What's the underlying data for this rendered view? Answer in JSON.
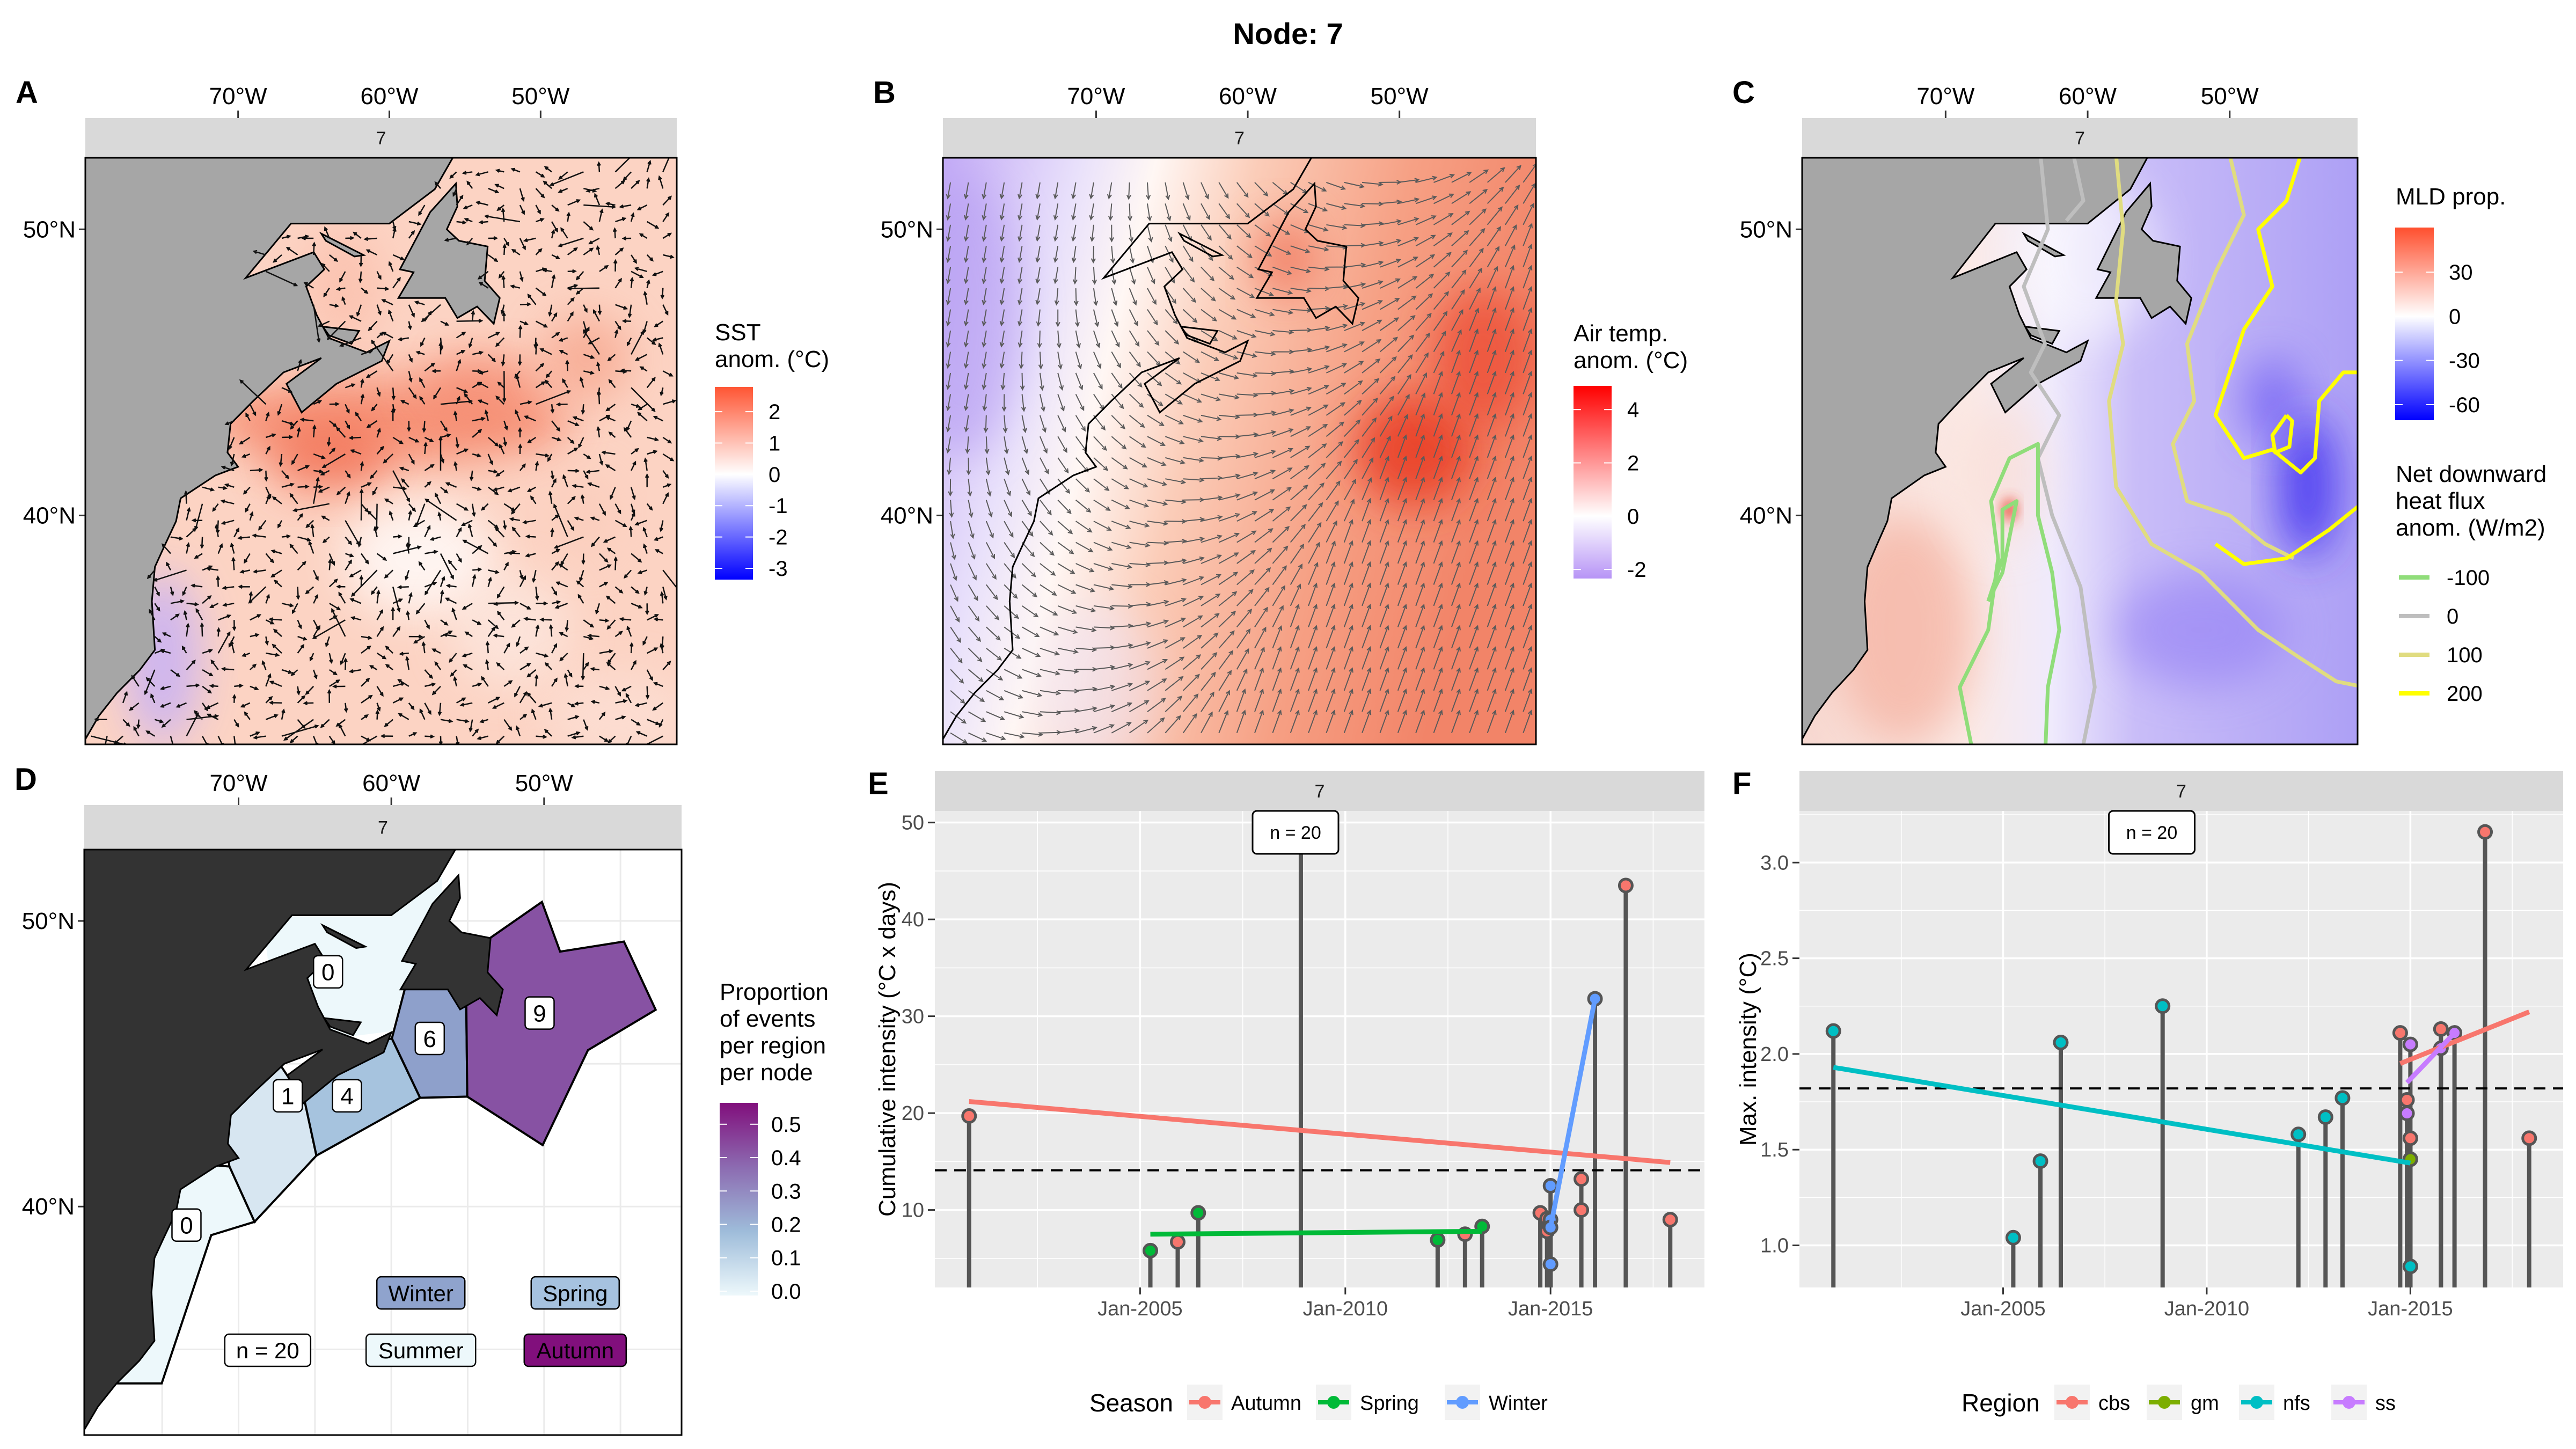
{
  "title": "Node: 7",
  "panels": {
    "A": {
      "letter": "A",
      "strip": "7",
      "lon_ticks": [
        "70°W",
        "60°W",
        "50°W"
      ],
      "lat_ticks": [
        "50°N",
        "40°N"
      ],
      "legend": {
        "title_lines": [
          "SST",
          "anom. (°C)"
        ],
        "ticks": [
          "2",
          "1",
          "0",
          "-1",
          "-2",
          "-3"
        ],
        "limits": [
          -3.36,
          2.79
        ],
        "colors": [
          "#0000FF",
          "#FFFFFF",
          "#FF5533"
        ]
      },
      "vectors": "black anomaly arrows"
    },
    "B": {
      "letter": "B",
      "strip": "7",
      "lon_ticks": [
        "70°W",
        "60°W",
        "50°W"
      ],
      "lat_ticks": [
        "50°N",
        "40°N"
      ],
      "legend": {
        "title_lines": [
          "Air temp.",
          "anom. (°C)"
        ],
        "ticks": [
          "4",
          "2",
          "0",
          "-2"
        ],
        "limits": [
          -2.34,
          4.89
        ],
        "colors": [
          "#B794F6",
          "#FFFFFF",
          "#FF0000"
        ]
      }
    },
    "C": {
      "letter": "C",
      "strip": "7",
      "lon_ticks": [
        "70°W",
        "60°W",
        "50°W"
      ],
      "lat_ticks": [
        "50°N",
        "40°N"
      ],
      "legend": {
        "title_lines": [
          "MLD prop."
        ],
        "ticks": [
          "30",
          "0",
          "-30",
          "-60"
        ],
        "limits": [
          -70.6,
          60.3
        ],
        "colors": [
          "#0000FF",
          "#FFFFFF",
          "#FF4F2E"
        ]
      },
      "contour_legend": {
        "title_lines": [
          "Net downward",
          "heat flux",
          "anom. (W/m2)"
        ],
        "entries": [
          {
            "label": "-100",
            "color": "#90DD7A"
          },
          {
            "label": "0",
            "color": "#BEBEBE"
          },
          {
            "label": "100",
            "color": "#E0DC80"
          },
          {
            "label": "200",
            "color": "#FFFF00"
          }
        ]
      }
    },
    "D": {
      "letter": "D",
      "strip": "7",
      "lon_ticks": [
        "70°W",
        "60°W",
        "50°W"
      ],
      "lat_ticks": [
        "50°N",
        "40°N"
      ],
      "legend": {
        "title_lines": [
          "Proportion",
          "of events",
          "per region",
          "per node"
        ],
        "ticks": [
          "0.5",
          "0.4",
          "0.3",
          "0.2",
          "0.1",
          "0.0"
        ],
        "limits": [
          -0.013,
          0.564
        ],
        "colors": [
          "#EDF8FB",
          "#9EBCDA",
          "#8C6BB1",
          "#810F7C"
        ]
      },
      "regions": [
        {
          "count": "0",
          "color": "#EDF8FB"
        },
        {
          "count": "1",
          "color": "#D7E6F1"
        },
        {
          "count": "4",
          "color": "#A6C3DE"
        },
        {
          "count": "6",
          "color": "#8EA0CB"
        },
        {
          "count": "9",
          "color": "#8752A3"
        },
        {
          "count": "0",
          "color": "#EDF8FB"
        }
      ],
      "n_label": "n = 20",
      "seasons": [
        {
          "label": "Winter",
          "color": "#8FA3CD"
        },
        {
          "label": "Spring",
          "color": "#A6C2DF"
        },
        {
          "label": "Summer",
          "color": "#EDF8FB"
        },
        {
          "label": "Autumn",
          "color": "#810F7C"
        }
      ]
    }
  },
  "chart_data": [
    {
      "panel": "E",
      "letter": "E",
      "type": "lollipop",
      "strip": "7",
      "ylabel": "Cumulative intensity (°C x days)",
      "xlim": [
        "2000-01",
        "2018-10"
      ],
      "ylim": [
        2.0,
        51.2
      ],
      "x_ticks": [
        "Jan-2005",
        "Jan-2010",
        "Jan-2015"
      ],
      "y_ticks": [
        "10",
        "20",
        "30",
        "40",
        "50"
      ],
      "annotation": "n = 20",
      "mean_line": 14.1,
      "grid": true,
      "legend": {
        "title": "Season",
        "placement": "bottom",
        "entries": [
          {
            "name": "Autumn",
            "color": "#F8766D"
          },
          {
            "name": "Spring",
            "color": "#00BA38"
          },
          {
            "name": "Winter",
            "color": "#619CFF"
          }
        ]
      },
      "points": [
        {
          "date": "2000-11",
          "value": 19.7,
          "group": "Autumn"
        },
        {
          "date": "2005-04",
          "value": 5.8,
          "group": "Spring"
        },
        {
          "date": "2005-12",
          "value": 6.7,
          "group": "Autumn"
        },
        {
          "date": "2006-06",
          "value": 9.7,
          "group": "Spring"
        },
        {
          "date": "2008-12",
          "value": null,
          "above_axis": true,
          "group": null
        },
        {
          "date": "2012-04",
          "value": 6.9,
          "group": "Spring"
        },
        {
          "date": "2012-12",
          "value": 7.5,
          "group": "Autumn"
        },
        {
          "date": "2013-05",
          "value": 8.3,
          "group": "Spring"
        },
        {
          "date": "2014-10",
          "value": 9.7,
          "group": "Autumn"
        },
        {
          "date": "2014-12",
          "value": 9.1,
          "group": "Autumn"
        },
        {
          "date": "2014-12",
          "value": 7.8,
          "group": "Autumn"
        },
        {
          "date": "2015-01",
          "value": 12.5,
          "group": "Winter"
        },
        {
          "date": "2015-01",
          "value": 9.0,
          "group": "Winter"
        },
        {
          "date": "2015-01",
          "value": 8.2,
          "group": "Winter"
        },
        {
          "date": "2015-01",
          "value": 4.4,
          "group": "Winter"
        },
        {
          "date": "2015-10",
          "value": 13.2,
          "group": "Autumn"
        },
        {
          "date": "2015-10",
          "value": 10.0,
          "group": "Autumn"
        },
        {
          "date": "2016-02",
          "value": 31.8,
          "group": "Winter"
        },
        {
          "date": "2016-11",
          "value": 43.5,
          "group": "Autumn"
        },
        {
          "date": "2017-12",
          "value": 9.0,
          "group": "Autumn"
        }
      ],
      "trend_lines": [
        {
          "group": "Autumn",
          "start": {
            "date": "2000-11",
            "value": 21.2
          },
          "end": {
            "date": "2017-12",
            "value": 14.9
          }
        },
        {
          "group": "Spring",
          "start": {
            "date": "2005-04",
            "value": 7.5
          },
          "end": {
            "date": "2013-05",
            "value": 7.8
          }
        },
        {
          "group": "Winter",
          "start": {
            "date": "2015-01",
            "value": 8.2
          },
          "end": {
            "date": "2016-02",
            "value": 31.8
          }
        }
      ]
    },
    {
      "panel": "F",
      "letter": "F",
      "type": "lollipop",
      "strip": "7",
      "ylabel": "Max. intensity (°C)",
      "xlim": [
        "2000-01",
        "2018-10"
      ],
      "ylim": [
        0.78,
        3.27
      ],
      "x_ticks": [
        "Jan-2005",
        "Jan-2010",
        "Jan-2015"
      ],
      "y_ticks": [
        "1.0",
        "1.5",
        "2.0",
        "2.5",
        "3.0"
      ],
      "annotation": "n = 20",
      "mean_line": 1.82,
      "grid": true,
      "legend": {
        "title": "Region",
        "placement": "bottom",
        "entries": [
          {
            "name": "cbs",
            "color": "#F8766D"
          },
          {
            "name": "gm",
            "color": "#7CAE00"
          },
          {
            "name": "nfs",
            "color": "#00BFC4"
          },
          {
            "name": "ss",
            "color": "#C77CFF"
          }
        ]
      },
      "points": [
        {
          "date": "2000-11",
          "value": 2.12,
          "group": "nfs"
        },
        {
          "date": "2005-04",
          "value": 1.04,
          "group": "nfs"
        },
        {
          "date": "2005-12",
          "value": 1.44,
          "group": "nfs"
        },
        {
          "date": "2006-06",
          "value": 2.06,
          "group": "nfs"
        },
        {
          "date": "2008-12",
          "value": 2.25,
          "group": "nfs"
        },
        {
          "date": "2012-04",
          "value": 1.58,
          "group": "nfs"
        },
        {
          "date": "2012-12",
          "value": 1.67,
          "group": "nfs"
        },
        {
          "date": "2013-05",
          "value": 1.77,
          "group": "nfs"
        },
        {
          "date": "2014-10",
          "value": 2.11,
          "group": "cbs"
        },
        {
          "date": "2014-12",
          "value": 1.76,
          "group": "cbs"
        },
        {
          "date": "2014-12",
          "value": 1.69,
          "group": "ss"
        },
        {
          "date": "2015-01",
          "value": 2.05,
          "group": "ss"
        },
        {
          "date": "2015-01",
          "value": 1.56,
          "group": "cbs"
        },
        {
          "date": "2015-01",
          "value": 1.45,
          "group": "gm"
        },
        {
          "date": "2015-01",
          "value": 0.89,
          "group": "nfs"
        },
        {
          "date": "2015-10",
          "value": 2.13,
          "group": "cbs"
        },
        {
          "date": "2015-10",
          "value": 2.03,
          "group": "ss"
        },
        {
          "date": "2016-02",
          "value": 2.11,
          "group": "ss"
        },
        {
          "date": "2016-11",
          "value": 3.16,
          "group": "cbs"
        },
        {
          "date": "2017-12",
          "value": 1.56,
          "group": "cbs"
        }
      ],
      "trend_lines": [
        {
          "group": "nfs",
          "start": {
            "date": "2000-11",
            "value": 1.93
          },
          "end": {
            "date": "2015-01",
            "value": 1.43
          }
        },
        {
          "group": "cbs",
          "start": {
            "date": "2014-10",
            "value": 1.95
          },
          "end": {
            "date": "2017-12",
            "value": 2.22
          }
        },
        {
          "group": "ss",
          "start": {
            "date": "2014-12",
            "value": 1.85
          },
          "end": {
            "date": "2016-02",
            "value": 2.11
          }
        }
      ]
    }
  ]
}
